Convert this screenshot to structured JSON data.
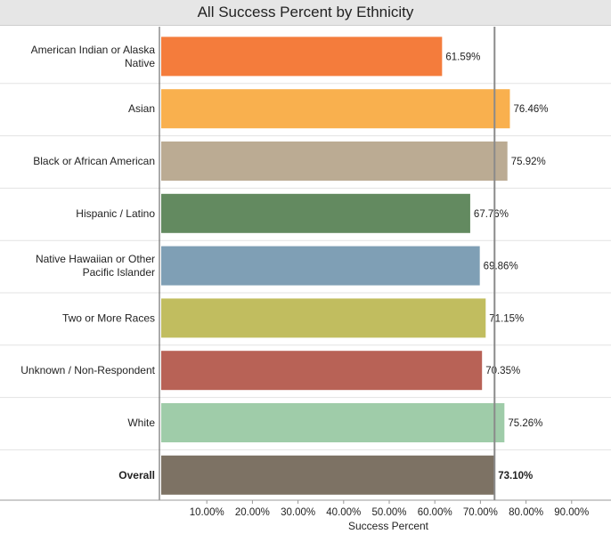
{
  "chart_data": {
    "type": "bar",
    "orientation": "horizontal",
    "title": "All Success Percent by Ethnicity",
    "xlabel": "Success Percent",
    "ylabel": "",
    "xlim": [
      0,
      95
    ],
    "xticks": [
      10,
      20,
      30,
      40,
      50,
      60,
      70,
      80,
      90
    ],
    "xtick_labels": [
      "10.00%",
      "20.00%",
      "30.00%",
      "40.00%",
      "50.00%",
      "60.00%",
      "70.00%",
      "80.00%",
      "90.00%"
    ],
    "categories": [
      "American Indian or Alaska Native",
      "Asian",
      "Black or African American",
      "Hispanic / Latino",
      "Native Hawaiian or Other Pacific Islander",
      "Two or More Races",
      "Unknown / Non-Respondent",
      "White",
      "Overall"
    ],
    "category_lines": [
      [
        "American Indian or Alaska",
        "Native"
      ],
      [
        "Asian"
      ],
      [
        "Black or African American"
      ],
      [
        "Hispanic / Latino"
      ],
      [
        "Native Hawaiian or Other",
        "Pacific Islander"
      ],
      [
        "Two or More Races"
      ],
      [
        "Unknown / Non-Respondent"
      ],
      [
        "White"
      ],
      [
        "Overall"
      ]
    ],
    "values": [
      61.59,
      76.46,
      75.92,
      67.76,
      69.86,
      71.15,
      70.35,
      75.26,
      73.1
    ],
    "value_labels": [
      "61.59%",
      "76.46%",
      "75.92%",
      "67.76%",
      "69.86%",
      "71.15%",
      "70.35%",
      "75.26%",
      "73.10%"
    ],
    "colors": [
      "#f47c3c",
      "#f9b04e",
      "#bbab93",
      "#638a60",
      "#7f9fb5",
      "#c1bd5f",
      "#b86256",
      "#9fcca9",
      "#7d7264"
    ],
    "bold_categories": [
      "Overall"
    ],
    "reference_line": 73.1,
    "grid": false
  }
}
